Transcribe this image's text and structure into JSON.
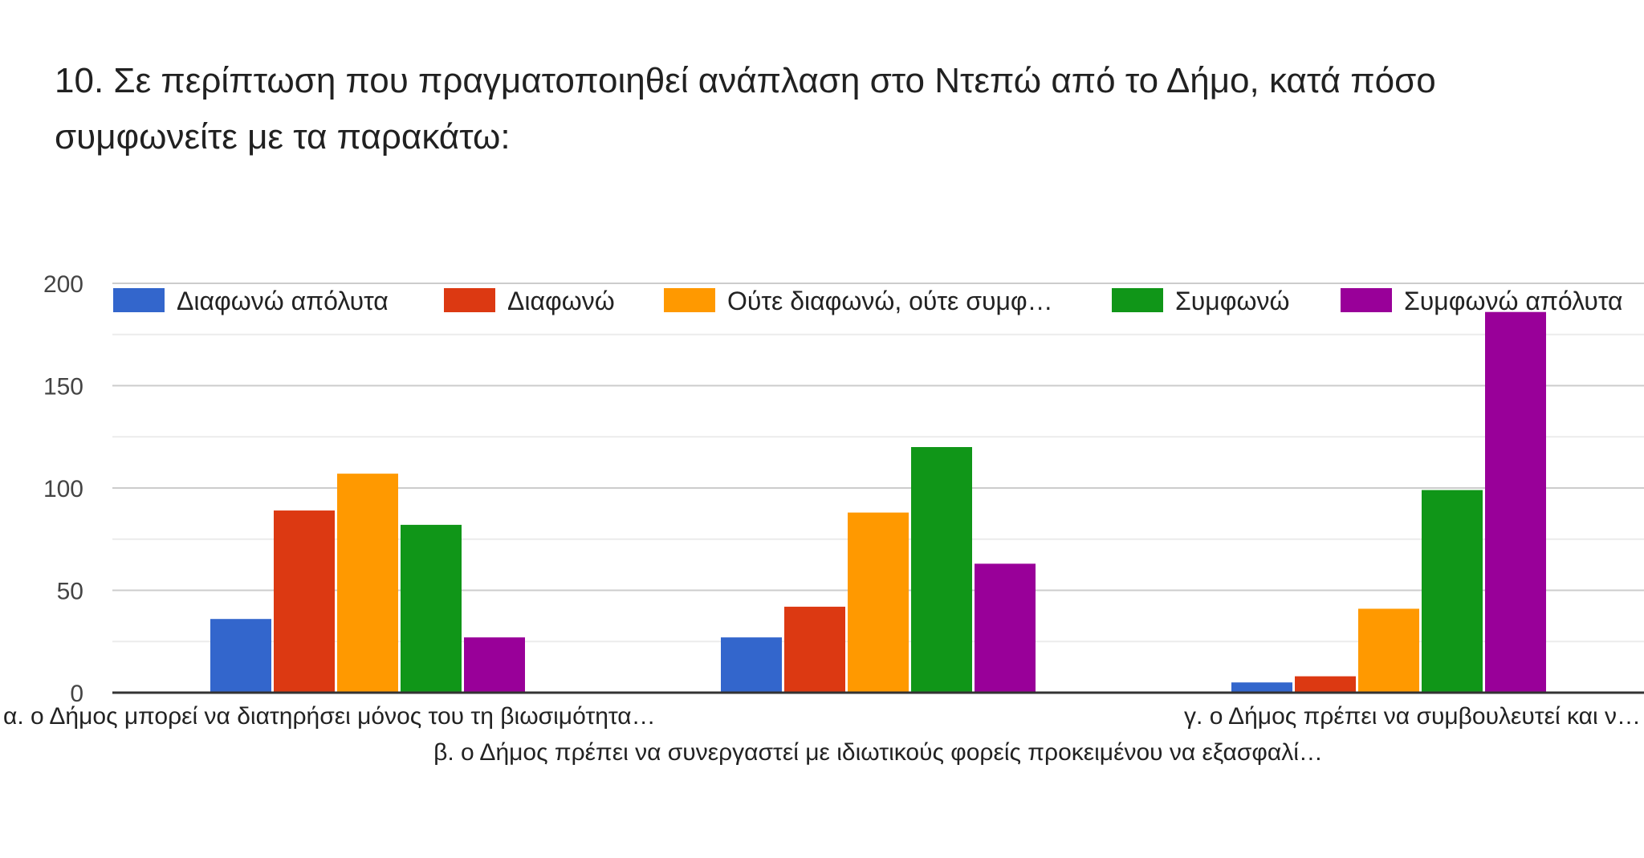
{
  "question": "10.  Σε περίπτωση που πραγματοποιηθεί ανάπλαση στο Ντεπώ από το Δήμο, κατά πόσο συμφωνείτε με τα παρακάτω:",
  "chart_data": {
    "type": "bar",
    "title": "10.  Σε περίπτωση που πραγματοποιηθεί ανάπλαση στο Ντεπώ από το Δήμο, κατά πόσο συμφωνείτε με τα παρακάτω:",
    "xlabel": "",
    "ylabel": "",
    "ylim": [
      0,
      200
    ],
    "yticks": [
      0,
      50,
      100,
      150,
      200
    ],
    "grid": true,
    "legend_position": "top",
    "categories": [
      "α. ο Δήμος μπορεί να διατηρήσει μόνος του τη βιωσιμότητα…",
      "β. ο Δήμος πρέπει να συνεργαστεί με ιδιωτικούς φορείς προκειμένου να εξασφαλί…",
      "γ. ο Δήμος πρέπει να συμβουλευτεί και ν…"
    ],
    "series": [
      {
        "name": "Διαφωνώ απόλυτα",
        "color": "#3366cc",
        "values": [
          36,
          27,
          5
        ]
      },
      {
        "name": "Διαφωνώ",
        "color": "#dc3912",
        "values": [
          89,
          42,
          8
        ]
      },
      {
        "name": "Ούτε διαφωνώ, ούτε συμφ…",
        "color": "#ff9900",
        "values": [
          107,
          88,
          41
        ]
      },
      {
        "name": "Συμφωνώ",
        "color": "#109618",
        "values": [
          82,
          120,
          99
        ]
      },
      {
        "name": "Συμφωνώ απόλυτα",
        "color": "#990099",
        "values": [
          27,
          63,
          186
        ]
      }
    ]
  }
}
